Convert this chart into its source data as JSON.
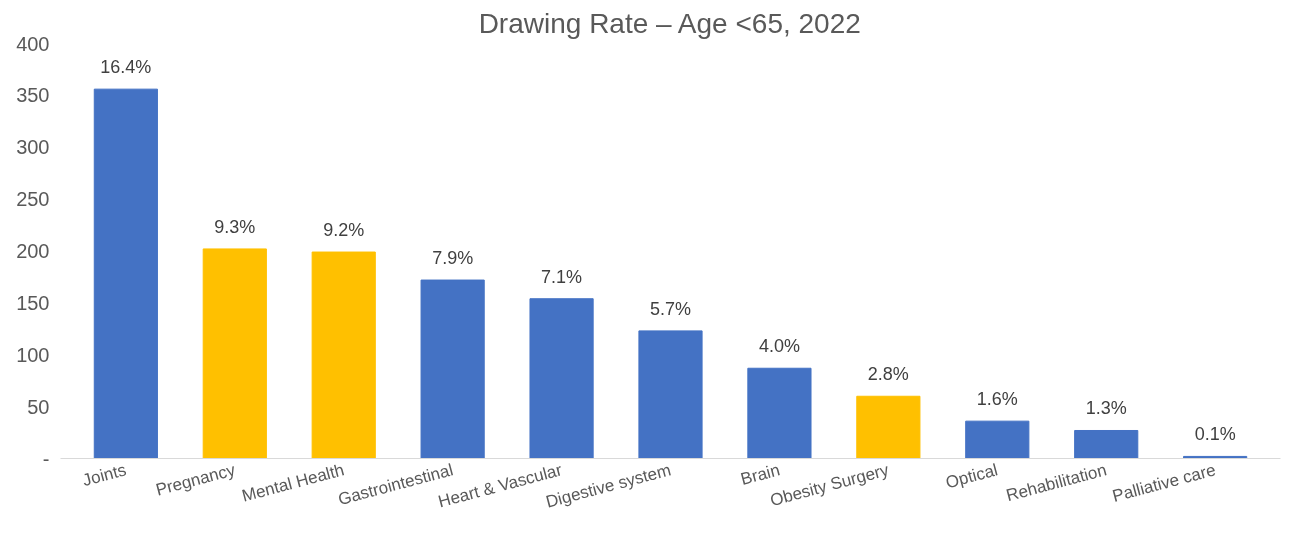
{
  "chart_data": {
    "type": "bar",
    "title": "Drawing Rate – Age <65, 2022",
    "categories": [
      "Joints",
      "Pregnancy",
      "Mental Health",
      "Gastrointestinal",
      "Heart & Vascular",
      "Digestive system",
      "Brain",
      "Obesity Surgery",
      "Optical",
      "Rehabilitation",
      "Palliative care"
    ],
    "values": [
      356,
      202,
      199,
      172,
      154,
      123,
      87,
      60,
      36,
      27,
      2
    ],
    "colors": [
      "#4472c4",
      "#ffc000",
      "#ffc000",
      "#4472c4",
      "#4472c4",
      "#4472c4",
      "#4472c4",
      "#ffc000",
      "#4472c4",
      "#4472c4",
      "#4472c4"
    ],
    "annotations": [
      {
        "text": "16.4%",
        "x": "Joints",
        "y": 356
      },
      {
        "text": "9.3%",
        "x": "Pregnancy",
        "y": 202
      },
      {
        "text": "9.2%",
        "x": "Mental Health",
        "y": 199
      },
      {
        "text": "7.9%",
        "x": "Gastrointestinal",
        "y": 172
      },
      {
        "text": "7.1%",
        "x": "Heart & Vascular",
        "y": 154
      },
      {
        "text": "5.7%",
        "x": "Digestive system",
        "y": 123
      },
      {
        "text": "4.0%",
        "x": "Brain",
        "y": 87
      },
      {
        "text": "2.8%",
        "x": "Obesity Surgery",
        "y": 60
      },
      {
        "text": "1.6%",
        "x": "Optical",
        "y": 36
      },
      {
        "text": "1.3%",
        "x": "Rehabilitation",
        "y": 27
      },
      {
        "text": "0.1%",
        "x": "Palliative care",
        "y": 2
      }
    ],
    "ylim": [
      0,
      400
    ],
    "yticks": [
      {
        "value": 0,
        "label": "-"
      },
      50,
      100,
      150,
      200,
      250,
      300,
      350,
      400
    ],
    "grid": false
  }
}
